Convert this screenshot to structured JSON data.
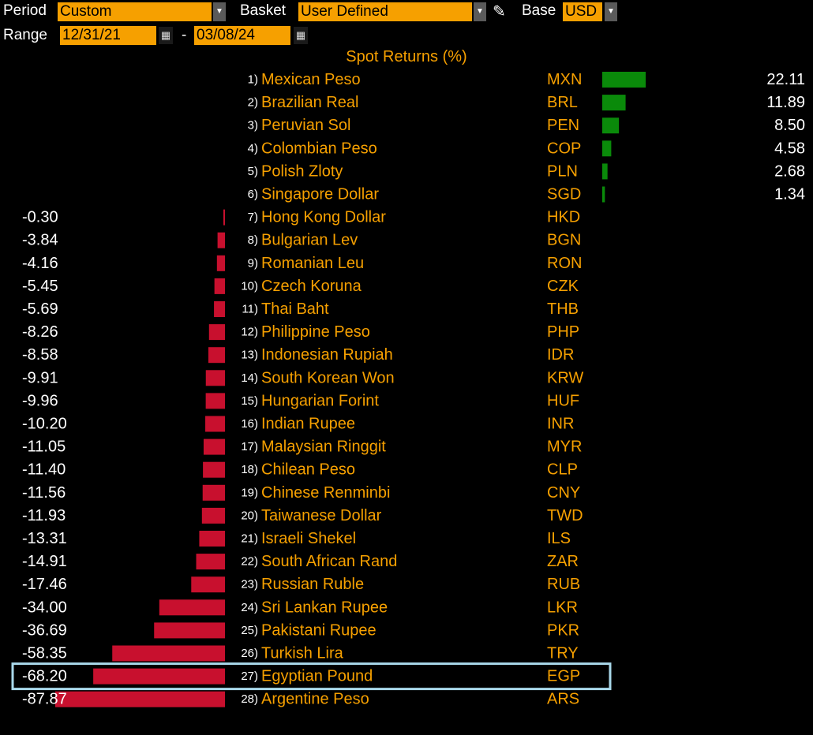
{
  "header": {
    "period_label": "Period",
    "period_value": "Custom",
    "basket_label": "Basket",
    "basket_value": "User Defined",
    "base_label": "Base",
    "base_value": "USD",
    "range_label": "Range",
    "range_start": "12/31/21",
    "range_sep": "-",
    "range_end": "03/08/24"
  },
  "colors": {
    "accent": "#f6a000",
    "positive": "#0a8a0a",
    "negative": "#c8102e",
    "highlight": "#a9d8ea"
  },
  "chart_data": {
    "type": "bar",
    "title": "Spot Returns (%)",
    "highlighted": "EGP",
    "rows": [
      {
        "rank": "1)",
        "name": "Mexican Peso",
        "code": "MXN",
        "value": 22.11,
        "label": "22.11"
      },
      {
        "rank": "2)",
        "name": "Brazilian Real",
        "code": "BRL",
        "value": 11.89,
        "label": "11.89"
      },
      {
        "rank": "3)",
        "name": "Peruvian Sol",
        "code": "PEN",
        "value": 8.5,
        "label": "8.50"
      },
      {
        "rank": "4)",
        "name": "Colombian Peso",
        "code": "COP",
        "value": 4.58,
        "label": "4.58"
      },
      {
        "rank": "5)",
        "name": "Polish Zloty",
        "code": "PLN",
        "value": 2.68,
        "label": "2.68"
      },
      {
        "rank": "6)",
        "name": "Singapore Dollar",
        "code": "SGD",
        "value": 1.34,
        "label": "1.34"
      },
      {
        "rank": "7)",
        "name": "Hong Kong Dollar",
        "code": "HKD",
        "value": -0.3,
        "label": "-0.30"
      },
      {
        "rank": "8)",
        "name": "Bulgarian Lev",
        "code": "BGN",
        "value": -3.84,
        "label": "-3.84"
      },
      {
        "rank": "9)",
        "name": "Romanian Leu",
        "code": "RON",
        "value": -4.16,
        "label": "-4.16"
      },
      {
        "rank": "10)",
        "name": "Czech Koruna",
        "code": "CZK",
        "value": -5.45,
        "label": "-5.45"
      },
      {
        "rank": "11)",
        "name": "Thai Baht",
        "code": "THB",
        "value": -5.69,
        "label": "-5.69"
      },
      {
        "rank": "12)",
        "name": "Philippine Peso",
        "code": "PHP",
        "value": -8.26,
        "label": "-8.26"
      },
      {
        "rank": "13)",
        "name": "Indonesian Rupiah",
        "code": "IDR",
        "value": -8.58,
        "label": "-8.58"
      },
      {
        "rank": "14)",
        "name": "South Korean Won",
        "code": "KRW",
        "value": -9.91,
        "label": "-9.91"
      },
      {
        "rank": "15)",
        "name": "Hungarian Forint",
        "code": "HUF",
        "value": -9.96,
        "label": "-9.96"
      },
      {
        "rank": "16)",
        "name": "Indian Rupee",
        "code": "INR",
        "value": -10.2,
        "label": "-10.20"
      },
      {
        "rank": "17)",
        "name": "Malaysian Ringgit",
        "code": "MYR",
        "value": -11.05,
        "label": "-11.05"
      },
      {
        "rank": "18)",
        "name": "Chilean Peso",
        "code": "CLP",
        "value": -11.4,
        "label": "-11.40"
      },
      {
        "rank": "19)",
        "name": "Chinese Renminbi",
        "code": "CNY",
        "value": -11.56,
        "label": "-11.56"
      },
      {
        "rank": "20)",
        "name": "Taiwanese Dollar",
        "code": "TWD",
        "value": -11.93,
        "label": "-11.93"
      },
      {
        "rank": "21)",
        "name": "Israeli Shekel",
        "code": "ILS",
        "value": -13.31,
        "label": "-13.31"
      },
      {
        "rank": "22)",
        "name": "South African Rand",
        "code": "ZAR",
        "value": -14.91,
        "label": "-14.91"
      },
      {
        "rank": "23)",
        "name": "Russian Ruble",
        "code": "RUB",
        "value": -17.46,
        "label": "-17.46"
      },
      {
        "rank": "24)",
        "name": "Sri Lankan Rupee",
        "code": "LKR",
        "value": -34.0,
        "label": "-34.00"
      },
      {
        "rank": "25)",
        "name": "Pakistani Rupee",
        "code": "PKR",
        "value": -36.69,
        "label": "-36.69"
      },
      {
        "rank": "26)",
        "name": "Turkish Lira",
        "code": "TRY",
        "value": -58.35,
        "label": "-58.35"
      },
      {
        "rank": "27)",
        "name": "Egyptian Pound",
        "code": "EGP",
        "value": -68.2,
        "label": "-68.20"
      },
      {
        "rank": "28)",
        "name": "Argentine Peso",
        "code": "ARS",
        "value": -87.87,
        "label": "-87.87"
      }
    ]
  }
}
